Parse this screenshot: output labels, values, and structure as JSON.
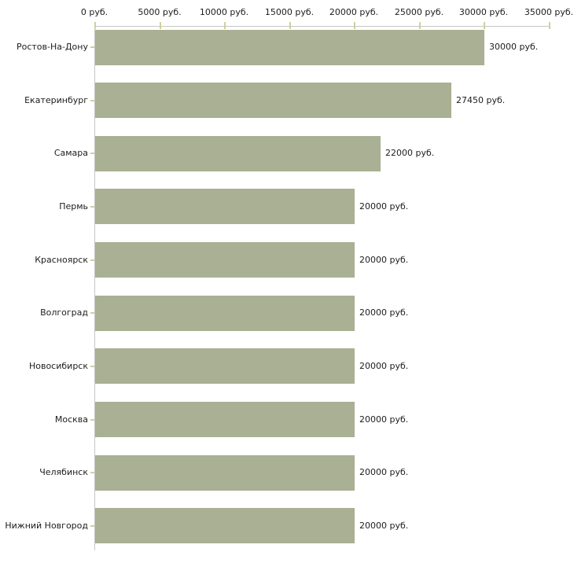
{
  "chart_data": {
    "type": "bar",
    "orientation": "horizontal",
    "title": "",
    "xlabel": "",
    "ylabel": "",
    "categories": [
      "Ростов-На-Дону",
      "Екатеринбург",
      "Самара",
      "Пермь",
      "Красноярск",
      "Волгоград",
      "Новосибирск",
      "Москва",
      "Челябинск",
      "Нижний Новгород"
    ],
    "values": [
      30000,
      27450,
      22000,
      20000,
      20000,
      20000,
      20000,
      20000,
      20000,
      20000
    ],
    "value_labels": [
      "30000 руб.",
      "27450 руб.",
      "22000 руб.",
      "20000 руб.",
      "20000 руб.",
      "20000 руб.",
      "20000 руб.",
      "20000 руб.",
      "20000 руб.",
      "20000 руб."
    ],
    "x_ticks": [
      0,
      5000,
      10000,
      15000,
      20000,
      25000,
      30000,
      35000
    ],
    "x_tick_labels": [
      "0 руб.",
      "5000 руб.",
      "10000 руб.",
      "15000 руб.",
      "20000 руб.",
      "25000 руб.",
      "30000 руб.",
      "35000 руб."
    ],
    "xlim": [
      0,
      35000
    ],
    "grid": false,
    "legend": false,
    "colors": {
      "bar": "#a9b093",
      "axis_line": "#c6c6c2",
      "tick_mark": "#cfcf9e",
      "text": "#1c1c1c",
      "background": "#ffffff"
    }
  }
}
